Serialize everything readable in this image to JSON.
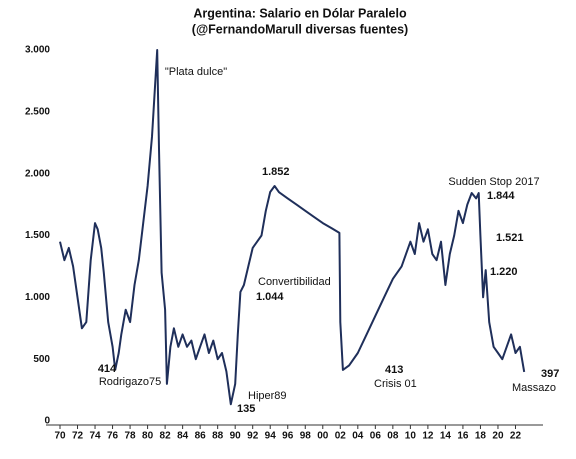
{
  "chart_data": {
    "type": "line",
    "title": "Argentina: Salario en Dólar Paralelo",
    "subtitle": "(@FernandoMarull diversas fuentes)",
    "series": [
      {
        "name": "Salario en Dólar Paralelo",
        "color": "#1f2f5a",
        "x": [
          1970,
          1970.5,
          1971,
          1971.5,
          1972,
          1972.5,
          1973,
          1973.5,
          1974,
          1974.3,
          1974.7,
          1975,
          1975.5,
          1976,
          1976.3,
          1976.7,
          1977,
          1977.5,
          1978,
          1978.5,
          1979,
          1979.5,
          1980,
          1980.5,
          1981.1,
          1981.3,
          1981.6,
          1982,
          1982.2,
          1982.6,
          1983,
          1983.5,
          1984,
          1984.5,
          1985,
          1985.5,
          1986,
          1986.5,
          1987,
          1987.5,
          1988,
          1988.5,
          1989,
          1989.5,
          1990,
          1990.3,
          1990.6,
          1991,
          1991.5,
          1992,
          1992.5,
          1993,
          1993.5,
          1994,
          1994.5,
          1995,
          1996,
          1997,
          1998,
          1999,
          2000,
          2001,
          2001.9,
          2002,
          2002.3,
          2003,
          2004,
          2005,
          2006,
          2007,
          2008,
          2009,
          2010,
          2010.5,
          2011,
          2011.5,
          2012,
          2012.5,
          2013,
          2013.5,
          2014,
          2014.5,
          2015,
          2015.5,
          2016,
          2016.5,
          2017,
          2017.5,
          2017.8,
          2018,
          2018.3,
          2018.6,
          2019,
          2019.5,
          2020,
          2020.5,
          2021,
          2021.5,
          2022,
          2022.5,
          2023
        ],
        "values": [
          1450,
          1300,
          1400,
          1250,
          1000,
          750,
          800,
          1300,
          1600,
          1550,
          1400,
          1200,
          800,
          600,
          414,
          550,
          700,
          900,
          800,
          1100,
          1300,
          1600,
          1900,
          2300,
          3000,
          2200,
          1200,
          900,
          300,
          600,
          750,
          600,
          700,
          600,
          650,
          500,
          600,
          700,
          550,
          650,
          500,
          550,
          400,
          135,
          300,
          700,
          1044,
          1100,
          1250,
          1400,
          1450,
          1500,
          1700,
          1852,
          1900,
          1850,
          1800,
          1750,
          1700,
          1650,
          1600,
          1560,
          1521,
          800,
          413,
          450,
          550,
          700,
          850,
          1000,
          1150,
          1250,
          1450,
          1350,
          1600,
          1450,
          1550,
          1350,
          1300,
          1450,
          1100,
          1350,
          1500,
          1700,
          1600,
          1750,
          1844,
          1800,
          1844,
          1500,
          1000,
          1220,
          800,
          600,
          550,
          500,
          600,
          700,
          550,
          600,
          397
        ]
      }
    ],
    "xlim": [
      1970,
      2024
    ],
    "xticks": [
      {
        "value": 1970,
        "label": "70"
      },
      {
        "value": 1972,
        "label": "72"
      },
      {
        "value": 1974,
        "label": "74"
      },
      {
        "value": 1976,
        "label": "76"
      },
      {
        "value": 1978,
        "label": "78"
      },
      {
        "value": 1980,
        "label": "80"
      },
      {
        "value": 1982,
        "label": "82"
      },
      {
        "value": 1984,
        "label": "84"
      },
      {
        "value": 1986,
        "label": "86"
      },
      {
        "value": 1988,
        "label": "88"
      },
      {
        "value": 1990,
        "label": "90"
      },
      {
        "value": 1992,
        "label": "92"
      },
      {
        "value": 1994,
        "label": "94"
      },
      {
        "value": 1996,
        "label": "96"
      },
      {
        "value": 1998,
        "label": "98"
      },
      {
        "value": 2000,
        "label": "00"
      },
      {
        "value": 2002,
        "label": "02"
      },
      {
        "value": 2004,
        "label": "04"
      },
      {
        "value": 2006,
        "label": "06"
      },
      {
        "value": 2008,
        "label": "08"
      },
      {
        "value": 2010,
        "label": "10"
      },
      {
        "value": 2012,
        "label": "12"
      },
      {
        "value": 2014,
        "label": "14"
      },
      {
        "value": 2016,
        "label": "16"
      },
      {
        "value": 2018,
        "label": "18"
      },
      {
        "value": 2020,
        "label": "20"
      },
      {
        "value": 2022,
        "label": "22"
      }
    ],
    "ylim": [
      0,
      3000
    ],
    "yticks": [
      0,
      500,
      {
        "value": 1000,
        "label": "1.000"
      },
      {
        "value": 1500,
        "label": "1.500"
      },
      {
        "value": 2000,
        "label": "2.000"
      },
      {
        "value": 2500,
        "label": "2.500"
      },
      {
        "value": 3000,
        "label": "3.000"
      }
    ],
    "annotations": [
      "\"Plata dulce\"",
      "414",
      "Rodrigazo75",
      "1.852",
      "Convertibilidad",
      "1.044",
      "Hiper89",
      "135",
      "1.521",
      "413",
      "Crisis 01",
      "Sudden Stop 2017",
      "1.844",
      "1.220",
      "397",
      "Massazo"
    ]
  }
}
